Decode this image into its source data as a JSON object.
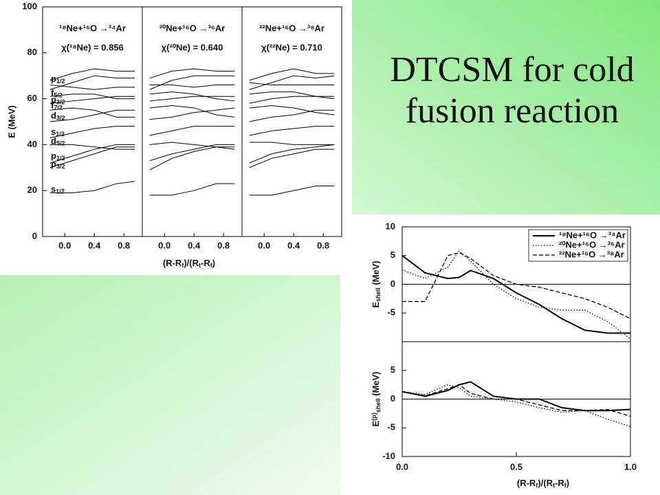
{
  "title": "DTCSM for cold fusion reaction",
  "chart_data": [
    {
      "type": "line",
      "ylabel": "E (MeV)",
      "xlabel": [
        {
          "t": "(R-R"
        },
        {
          "sub": "f"
        },
        {
          "t": ")/(R"
        },
        {
          "sub": "t"
        },
        {
          "t": "-R"
        },
        {
          "sub": "f"
        },
        {
          "t": ")"
        }
      ],
      "xlim": [
        -0.3,
        1.05
      ],
      "ylim": [
        0,
        100
      ],
      "yticks": [
        0,
        20,
        40,
        60,
        80,
        100
      ],
      "xticks": [
        {
          "value": 0,
          "label": "0.0"
        },
        {
          "value": 0.4,
          "label": "0.4"
        },
        {
          "value": 0.8,
          "label": "0.8"
        }
      ],
      "color": "#000000",
      "level_labels": [
        {
          "name": "s",
          "sub": "1/2",
          "value": 19
        },
        {
          "name": "p",
          "sub": "3/2",
          "value": 30
        },
        {
          "name": "p",
          "sub": "1/2",
          "value": 33.5
        },
        {
          "name": "d",
          "sub": "5/2",
          "value": 40
        },
        {
          "name": "s",
          "sub": "1/2",
          "value": 44
        },
        {
          "name": "d",
          "sub": "3/2",
          "value": 51
        },
        {
          "name": "f",
          "sub": "7/2",
          "value": 55.5
        },
        {
          "name": "p",
          "sub": "3/2",
          "value": 58
        },
        {
          "name": "f",
          "sub": "5/2",
          "value": 61
        },
        {
          "name": "p",
          "sub": "1/2",
          "value": 67
        }
      ],
      "panels": [
        {
          "label": "¹⁸Ne+¹⁶O →³⁴Ar",
          "annotation": "χ(¹⁸Ne) = 0.856",
          "x": [
            -0.2,
            0.1,
            0.4,
            0.7,
            0.95
          ],
          "series": [
            {
              "values": [
                19,
                19,
                20,
                23,
                24
              ]
            },
            {
              "values": [
                30,
                33,
                36,
                39,
                39
              ]
            },
            {
              "values": [
                32,
                35,
                38,
                40,
                40
              ]
            },
            {
              "values": [
                40,
                40,
                39,
                38,
                38
              ]
            },
            {
              "values": [
                43,
                45,
                47,
                48,
                48
              ]
            },
            {
              "values": [
                50,
                51,
                53,
                55,
                55
              ]
            },
            {
              "values": [
                55,
                56,
                55,
                52,
                52
              ]
            },
            {
              "values": [
                58,
                59,
                60,
                61,
                61
              ]
            },
            {
              "values": [
                61,
                62,
                62,
                60,
                60
              ]
            },
            {
              "values": [
                66,
                65,
                64,
                65,
                65
              ]
            },
            {
              "values": [
                68,
                71,
                73,
                72,
                72
              ]
            },
            {
              "values": [
                64,
                67,
                70,
                69,
                69
              ]
            }
          ]
        },
        {
          "label": "²⁰Ne+¹⁶O →³⁶Ar",
          "annotation": "χ(²⁰Ne) = 0.640",
          "x": [
            -0.2,
            0.1,
            0.4,
            0.7,
            0.95
          ],
          "series": [
            {
              "values": [
                18,
                18,
                20,
                23,
                23
              ]
            },
            {
              "values": [
                29,
                34,
                37,
                39,
                39
              ]
            },
            {
              "values": [
                33,
                36,
                38,
                40,
                40
              ]
            },
            {
              "values": [
                40,
                41,
                40,
                39,
                38
              ]
            },
            {
              "values": [
                44,
                46,
                48,
                48,
                48
              ]
            },
            {
              "values": [
                51,
                52,
                54,
                55,
                56
              ]
            },
            {
              "values": [
                56,
                57,
                56,
                53,
                52
              ]
            },
            {
              "values": [
                59,
                60,
                61,
                61,
                61
              ]
            },
            {
              "values": [
                62,
                63,
                62,
                60,
                59
              ]
            },
            {
              "values": [
                66,
                66,
                65,
                66,
                66
              ]
            },
            {
              "values": [
                69,
                72,
                73,
                72,
                72
              ]
            },
            {
              "values": [
                64,
                68,
                70,
                70,
                70
              ]
            }
          ]
        },
        {
          "label": "²²Ne+¹⁶O →³⁸Ar",
          "annotation": "χ(²²Ne) = 0.710",
          "x": [
            -0.2,
            0.1,
            0.4,
            0.7,
            0.95
          ],
          "series": [
            {
              "values": [
                18,
                18,
                20,
                22,
                22
              ]
            },
            {
              "values": [
                30,
                34,
                36,
                38,
                38
              ]
            },
            {
              "values": [
                32,
                36,
                38,
                39,
                40
              ]
            },
            {
              "values": [
                41,
                41,
                40,
                40,
                40
              ]
            },
            {
              "values": [
                44,
                46,
                47,
                48,
                48
              ]
            },
            {
              "values": [
                50,
                52,
                53,
                55,
                55
              ]
            },
            {
              "values": [
                56,
                57,
                56,
                54,
                53
              ]
            },
            {
              "values": [
                58,
                60,
                61,
                61,
                61
              ]
            },
            {
              "values": [
                62,
                63,
                63,
                61,
                60
              ]
            },
            {
              "values": [
                67,
                66,
                66,
                66,
                66
              ]
            },
            {
              "values": [
                68,
                71,
                73,
                71,
                71
              ]
            },
            {
              "values": [
                64,
                67,
                70,
                69,
                70
              ]
            }
          ]
        }
      ]
    },
    {
      "type": "line",
      "ylabel": [
        {
          "t": "E"
        },
        {
          "sub": "shell"
        },
        {
          "t": " (MeV)"
        }
      ],
      "xlim": [
        0,
        1
      ],
      "ylim": [
        -10,
        10
      ],
      "yticks": [
        -5,
        0,
        5,
        10
      ],
      "zero_line": true,
      "legend": "upper right",
      "x": [
        0,
        0.1,
        0.2,
        0.25,
        0.3,
        0.4,
        0.5,
        0.6,
        0.7,
        0.8,
        0.9,
        1.0
      ],
      "series": [
        {
          "name": "¹⁸Ne+¹⁶O →³⁴Ar",
          "color": "#000000",
          "dash": "solid",
          "values": [
            5,
            2,
            1,
            1.2,
            2.4,
            1,
            -1.5,
            -3.5,
            -6,
            -8,
            -8.5,
            -8.5
          ]
        },
        {
          "name": "²⁰Ne+¹⁶O →³⁶Ar",
          "color": "#000000",
          "dash": "dotted",
          "values": [
            2.5,
            1,
            3,
            5.8,
            4,
            0,
            -2.5,
            -4,
            -4.5,
            -4.5,
            -6.5,
            -9.5
          ]
        },
        {
          "name": "²²Ne+¹⁶O →³⁸Ar",
          "color": "#000000",
          "dash": "dashed",
          "values": [
            -3,
            -3,
            5,
            5.5,
            4.5,
            1.5,
            0,
            -0.5,
            -1.5,
            -2.5,
            -4,
            -6
          ]
        }
      ]
    },
    {
      "type": "line",
      "ylabel": [
        {
          "t": "E"
        },
        {
          "sup": "(p)"
        },
        {
          "sub": "shell"
        },
        {
          "t": " (MeV)"
        }
      ],
      "xlabel": [
        {
          "t": "(R-R"
        },
        {
          "sub": "f"
        },
        {
          "t": ")/(R"
        },
        {
          "sub": "t"
        },
        {
          "t": "-R"
        },
        {
          "sub": "f"
        },
        {
          "t": ")"
        }
      ],
      "xlim": [
        0,
        1
      ],
      "ylim": [
        -10,
        10
      ],
      "yticks": [
        -10,
        -5,
        0,
        5
      ],
      "zero_line": true,
      "xticks": [
        {
          "value": 0,
          "label": "0.0"
        },
        {
          "value": 0.5,
          "label": "0.5"
        },
        {
          "value": 1,
          "label": "1.0"
        }
      ],
      "x": [
        0,
        0.1,
        0.2,
        0.25,
        0.3,
        0.4,
        0.5,
        0.6,
        0.7,
        0.8,
        0.9,
        1.0
      ],
      "series": [
        {
          "color": "#000000",
          "dash": "solid",
          "values": [
            1.3,
            0.5,
            1.5,
            2.5,
            3,
            0.5,
            0,
            0,
            -1.5,
            -2,
            -2,
            -1.8
          ]
        },
        {
          "color": "#000000",
          "dash": "dotted",
          "values": [
            1.3,
            0.8,
            2.5,
            2,
            0.5,
            0,
            -0.5,
            -1.5,
            -2.3,
            -2,
            -3.5,
            -4.8
          ]
        },
        {
          "color": "#000000",
          "dash": "dashed",
          "values": [
            1.3,
            0.6,
            1.8,
            2.5,
            1,
            0,
            0,
            -1,
            -2,
            -2,
            -1.8,
            -3
          ]
        }
      ]
    }
  ]
}
